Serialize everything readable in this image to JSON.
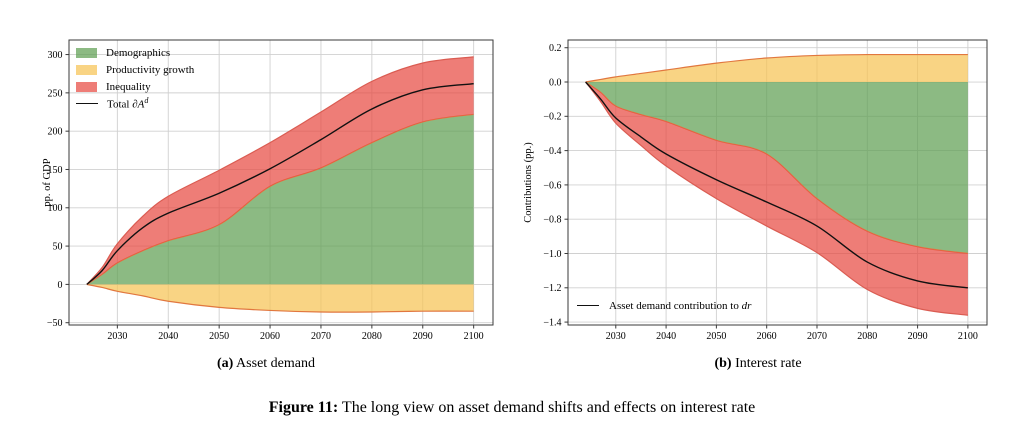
{
  "captions": {
    "a": {
      "label": "(a)",
      "text": " Asset demand"
    },
    "b": {
      "label": "(b)",
      "text": " Interest rate"
    },
    "figure": {
      "label": "Figure 11:",
      "text": " The long view on asset demand shifts and effects on interest rate"
    }
  },
  "chart_data": [
    {
      "type": "area",
      "title": "Asset demand",
      "xlabel": "",
      "ylabel": "pp. of GDP",
      "x": [
        2024,
        2027,
        2030,
        2035,
        2040,
        2050,
        2060,
        2070,
        2080,
        2090,
        2100
      ],
      "xlim": [
        2020.5,
        2103.8
      ],
      "ylim": [
        -53,
        319
      ],
      "xticks": [
        2030,
        2040,
        2050,
        2060,
        2070,
        2080,
        2090,
        2100
      ],
      "xtick_labels": [
        "2030",
        "2040",
        "2050",
        "2060",
        "2070",
        "2080",
        "2090",
        "2100"
      ],
      "yticks": [
        -50,
        0,
        50,
        100,
        150,
        200,
        250,
        300
      ],
      "ytick_labels": [
        "−50",
        "0",
        "50",
        "100",
        "150",
        "200",
        "250",
        "300"
      ],
      "grid": true,
      "legend_position": "top-left",
      "series": [
        {
          "name": "Demographics",
          "values": [
            0,
            13,
            28,
            44,
            57,
            78,
            128,
            152,
            185,
            212,
            222
          ],
          "fill": "rgba(96,160,83,0.72)",
          "edge": "#e1773f"
        },
        {
          "name": "Productivity growth",
          "values": [
            0,
            -4,
            -9,
            -15,
            -22,
            -30,
            -34,
            -36,
            -36,
            -35,
            -35
          ],
          "fill": "rgba(246,196,85,0.72)",
          "edge": "#e1773f"
        },
        {
          "name": "Inequality",
          "values": [
            0,
            9,
            25,
            45,
            58,
            71,
            57,
            73,
            80,
            77,
            75
          ],
          "fill": "rgba(232,75,66,0.72)",
          "edge": "#da5c52"
        }
      ],
      "total": {
        "label_prefix": "Total ",
        "label_math": "∂A",
        "label_sup": "d",
        "values": [
          0,
          18,
          44,
          74,
          93,
          119,
          151,
          189,
          229,
          254,
          262
        ],
        "color": "#111111"
      }
    },
    {
      "type": "area",
      "title": "Interest rate",
      "xlabel": "",
      "ylabel": "Contributions (pp.)",
      "x": [
        2024,
        2027,
        2030,
        2035,
        2040,
        2050,
        2060,
        2070,
        2080,
        2090,
        2100
      ],
      "xlim": [
        2020.5,
        2103.8
      ],
      "ylim": [
        -1.417,
        0.245
      ],
      "xticks": [
        2030,
        2040,
        2050,
        2060,
        2070,
        2080,
        2090,
        2100
      ],
      "xtick_labels": [
        "2030",
        "2040",
        "2050",
        "2060",
        "2070",
        "2080",
        "2090",
        "2100"
      ],
      "yticks": [
        -1.4,
        -1.2,
        -1.0,
        -0.8,
        -0.6,
        -0.4,
        -0.2,
        0.0,
        0.2
      ],
      "ytick_labels": [
        "−1.4",
        "−1.2",
        "−1.0",
        "−0.8",
        "−0.6",
        "−0.4",
        "−0.2",
        "0.0",
        "0.2"
      ],
      "grid": true,
      "legend_position": "bottom-left",
      "series": [
        {
          "name": "Demographics",
          "values": [
            0,
            -0.06,
            -0.14,
            -0.19,
            -0.23,
            -0.34,
            -0.42,
            -0.68,
            -0.87,
            -0.96,
            -1.0
          ],
          "fill": "rgba(96,160,83,0.72)",
          "edge": "#e1773f"
        },
        {
          "name": "Productivity growth",
          "values": [
            0,
            0.015,
            0.03,
            0.05,
            0.07,
            0.11,
            0.14,
            0.155,
            0.16,
            0.16,
            0.16
          ],
          "fill": "rgba(246,196,85,0.72)",
          "edge": "#e1773f"
        },
        {
          "name": "Inequality",
          "values": [
            0,
            -0.055,
            -0.1,
            -0.18,
            -0.26,
            -0.34,
            -0.42,
            -0.315,
            -0.34,
            -0.36,
            -0.36
          ],
          "fill": "rgba(232,75,66,0.72)",
          "edge": "#da5c52"
        }
      ],
      "total": {
        "label_text": "Asset demand contribution to ",
        "label_math": "dr",
        "values": [
          0,
          -0.1,
          -0.21,
          -0.32,
          -0.42,
          -0.57,
          -0.7,
          -0.84,
          -1.05,
          -1.16,
          -1.2
        ],
        "color": "#111111"
      }
    }
  ],
  "style": {
    "grid_color": "#d0d0d0",
    "spine_color": "#3a3a3a",
    "tick_text_color": "#000000"
  }
}
